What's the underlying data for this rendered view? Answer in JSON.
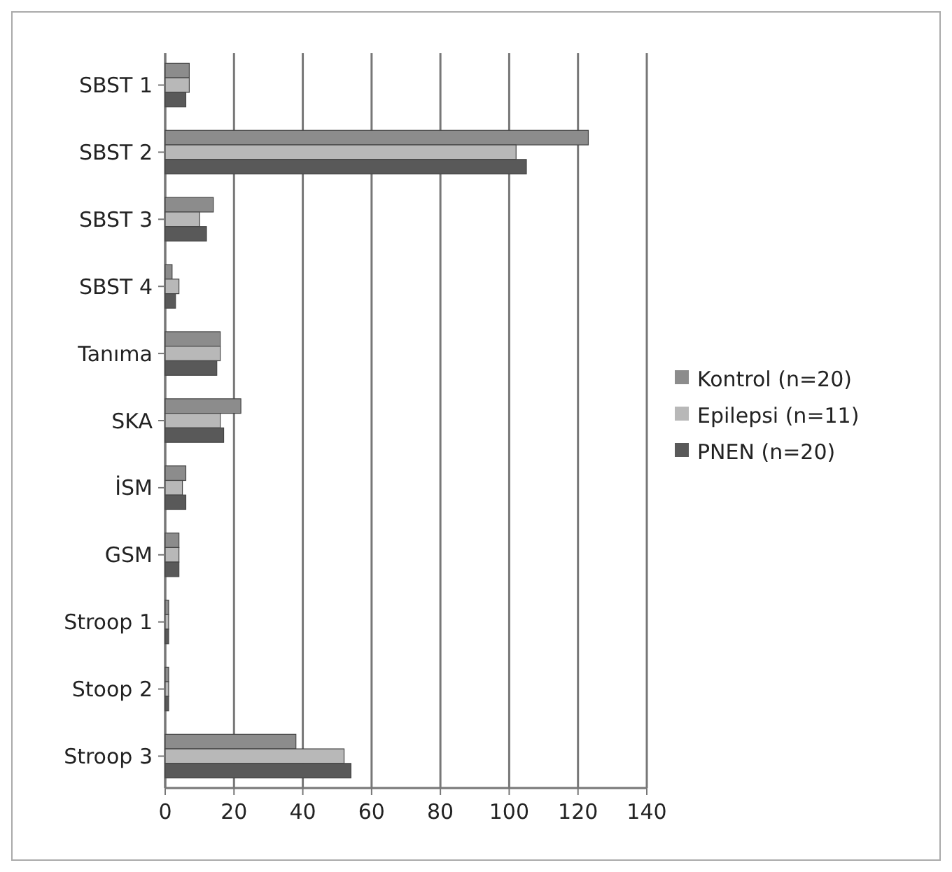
{
  "chart_data": {
    "type": "bar",
    "orientation": "horizontal",
    "categories": [
      "SBST 1",
      "SBST 2",
      "SBST 3",
      "SBST 4",
      "Tanıma",
      "SKA",
      "İSM",
      "GSM",
      "Stroop 1",
      "Stoop 2",
      "Stroop 3"
    ],
    "series": [
      {
        "name": "Kontrol (n=20)",
        "color": "#8c8c8c",
        "values": [
          7,
          123,
          14,
          2,
          16,
          22,
          6,
          4,
          1,
          1,
          38
        ]
      },
      {
        "name": "Epilepsi (n=11)",
        "color": "#b8b8b8",
        "values": [
          7,
          102,
          10,
          4,
          16,
          16,
          5,
          4,
          1,
          1,
          52
        ]
      },
      {
        "name": "PNEN (n=20)",
        "color": "#595959",
        "values": [
          6,
          105,
          12,
          3,
          15,
          17,
          6,
          4,
          1,
          1,
          54
        ]
      }
    ],
    "xlim": [
      0,
      140
    ],
    "xticks": [
      0,
      20,
      40,
      60,
      80,
      100,
      120,
      140
    ],
    "grid": "x",
    "legend": "right"
  }
}
